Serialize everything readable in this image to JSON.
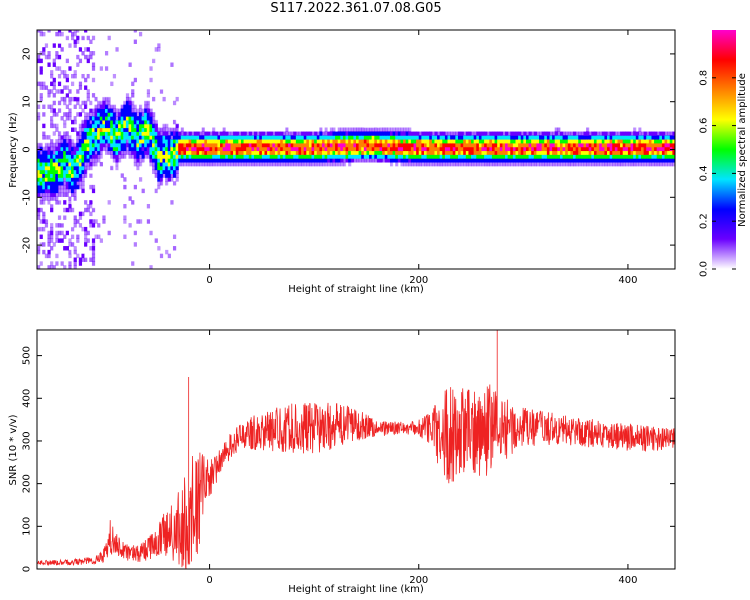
{
  "title": "S117.2022.361.07.08.G05",
  "chart_data": [
    {
      "type": "heatmap",
      "xlabel": "Height of straight line (km)",
      "ylabel": "Frequency (Hz)",
      "xlim": [
        -165,
        445
      ],
      "ylim": [
        -25,
        25
      ],
      "xticks": [
        0,
        200,
        400
      ],
      "yticks": [
        -20,
        -10,
        0,
        10,
        20
      ],
      "ridge": {
        "x": [
          -165,
          -150,
          -140,
          -130,
          -120,
          -110,
          -100,
          -90,
          -80,
          -70,
          -60,
          -55,
          -50,
          -45,
          -40,
          -35,
          -30,
          -25,
          -20,
          -10,
          0,
          50,
          100,
          150,
          200,
          250,
          300,
          350,
          400,
          445
        ],
        "y": [
          -5,
          -5,
          -3,
          -5,
          1,
          3,
          5,
          2,
          5,
          2,
          4,
          1,
          -2,
          -1,
          -2,
          -1,
          0,
          0,
          0,
          0,
          0,
          0,
          0,
          0.5,
          0,
          0,
          0,
          0,
          0,
          0
        ]
      },
      "colorbar": {
        "label": "Normalized spectral amplitude",
        "ticks": [
          0.0,
          0.2,
          0.4,
          0.6,
          0.8
        ],
        "range": [
          0,
          1
        ],
        "colors": [
          "#ffffff",
          "#6a00ff",
          "#0000ff",
          "#00e5ff",
          "#00ff00",
          "#ffff00",
          "#ff8000",
          "#ff0000",
          "#ff00cc"
        ]
      }
    },
    {
      "type": "line",
      "color": "#ee2222",
      "xlabel": "Height of straight line (km)",
      "ylabel": "SNR (10 * v/v)",
      "xlim": [
        -165,
        445
      ],
      "ylim": [
        0,
        560
      ],
      "xticks": [
        0,
        200,
        400
      ],
      "yticks": [
        0,
        100,
        200,
        300,
        400,
        500
      ],
      "envelope": {
        "x": [
          -165,
          -140,
          -110,
          -100,
          -95,
          -90,
          -80,
          -70,
          -60,
          -50,
          -40,
          -30,
          -20,
          -15,
          -10,
          -5,
          0,
          10,
          20,
          30,
          40,
          60,
          80,
          100,
          120,
          140,
          160,
          180,
          190,
          200,
          210,
          220,
          230,
          240,
          250,
          260,
          270,
          280,
          290,
          300,
          320,
          340,
          360,
          380,
          400,
          420,
          445
        ],
        "mean": [
          15,
          15,
          20,
          35,
          75,
          60,
          40,
          35,
          45,
          65,
          85,
          90,
          100,
          130,
          160,
          200,
          210,
          250,
          290,
          310,
          320,
          325,
          330,
          330,
          335,
          340,
          330,
          330,
          330,
          330,
          330,
          320,
          315,
          320,
          320,
          325,
          330,
          330,
          330,
          330,
          330,
          325,
          320,
          315,
          310,
          305,
          305
        ],
        "amp": [
          6,
          6,
          10,
          20,
          40,
          30,
          20,
          20,
          25,
          40,
          60,
          90,
          150,
          140,
          120,
          70,
          45,
          30,
          30,
          30,
          40,
          50,
          60,
          60,
          55,
          40,
          20,
          15,
          15,
          20,
          40,
          90,
          120,
          110,
          100,
          110,
          110,
          80,
          60,
          50,
          40,
          35,
          35,
          30,
          35,
          30,
          25
        ],
        "peak_x": [
          -20,
          275
        ],
        "peak_y": [
          450,
          560
        ]
      }
    }
  ]
}
